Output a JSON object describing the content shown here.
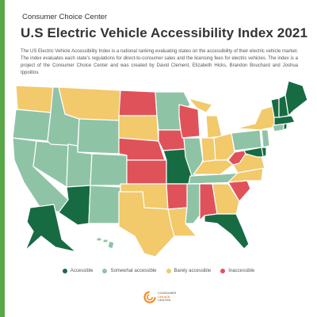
{
  "header": {
    "org_name": "Consumer Choice Center",
    "title": "U.S Electric Vehicle Accessibility Index 2021"
  },
  "intro_text": "The US Electric Vehicle Accessibility Index is a national ranking evaluating states on the accessibility of their electric vehicle market. The index evaluates each state's regulations for direct-to-consumer sales and the licensing fees for electric vehicles. The index is a project of the Consumer Choice Center and was created by David Clement, Elizabeth Hicks, Brandon Bouchard and Joshua Ippolitov.",
  "colors": {
    "accessible": "#176b43",
    "somewhat_accessible": "#8fc3a6",
    "barely_accessible": "#f2c96b",
    "inaccessible": "#e0525a",
    "sidebar": "#5aa84a",
    "logo_orange": "#f28c28"
  },
  "legend": [
    {
      "label": "Accessible",
      "category": "accessible",
      "color": "#176b43"
    },
    {
      "label": "Somewhat accessible",
      "category": "somewhat_accessible",
      "color": "#8fc3a6"
    },
    {
      "label": "Barely accessible",
      "category": "barely_accessible",
      "color": "#f2c96b"
    },
    {
      "label": "Inaccessible",
      "category": "inaccessible",
      "color": "#e0525a"
    }
  ],
  "map": {
    "states": {
      "WA": "barely_accessible",
      "OR": "somewhat_accessible",
      "CA": "somewhat_accessible",
      "NV": "somewhat_accessible",
      "ID": "somewhat_accessible",
      "MT": "barely_accessible",
      "WY": "somewhat_accessible",
      "UT": "somewhat_accessible",
      "AZ": "accessible",
      "CO": "somewhat_accessible",
      "NM": "somewhat_accessible",
      "ND": "inaccessible",
      "SD": "barely_accessible",
      "NE": "inaccessible",
      "KS": "inaccessible",
      "OK": "barely_accessible",
      "TX": "barely_accessible",
      "MN": "somewhat_accessible",
      "IA": "inaccessible",
      "MO": "accessible",
      "AR": "inaccessible",
      "LA": "barely_accessible",
      "WI": "inaccessible",
      "IL": "somewhat_accessible",
      "MI": "barely_accessible",
      "IN": "barely_accessible",
      "OH": "barely_accessible",
      "KY": "barely_accessible",
      "TN": "somewhat_accessible",
      "MS": "somewhat_accessible",
      "AL": "inaccessible",
      "GA": "barely_accessible",
      "FL": "accessible",
      "SC": "inaccessible",
      "NC": "barely_accessible",
      "VA": "barely_accessible",
      "WV": "inaccessible",
      "PA": "somewhat_accessible",
      "NY": "barely_accessible",
      "VT": "accessible",
      "NH": "accessible",
      "ME": "accessible",
      "MA": "accessible",
      "RI": "accessible",
      "CT": "somewhat_accessible",
      "NJ": "somewhat_accessible",
      "DE": "accessible",
      "MD": "accessible",
      "AK": "accessible",
      "HI": "somewhat_accessible"
    }
  },
  "footer": {
    "logo_line1": "CONSUMER",
    "logo_line2": "CHOICE",
    "logo_line3": "CENTER"
  }
}
